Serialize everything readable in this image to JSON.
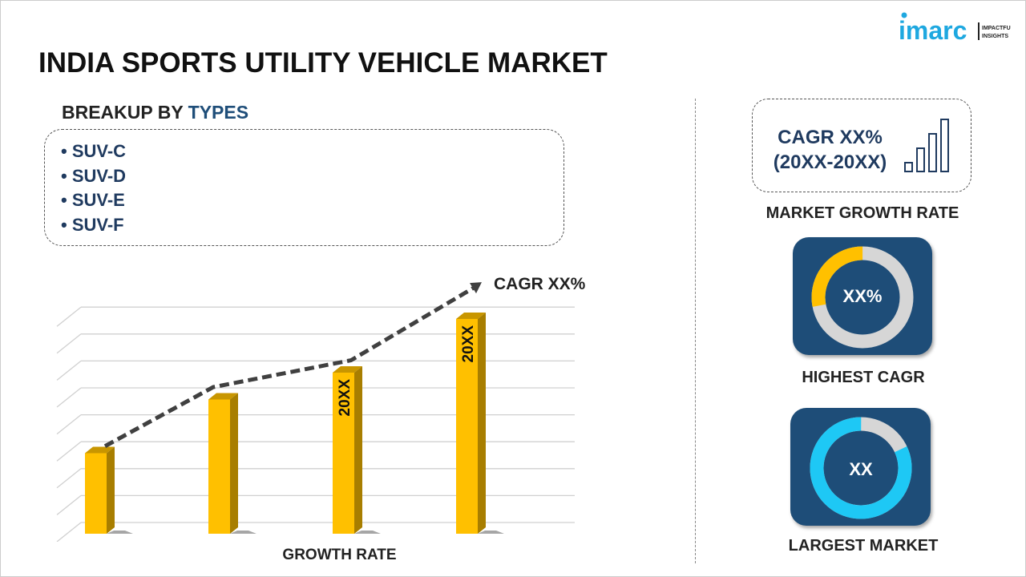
{
  "header": {
    "title": "INDIA SPORTS UTILITY VEHICLE MARKET",
    "logo_text": "imarc",
    "logo_tagline": "IMPACTFUL INSIGHTS"
  },
  "breakup": {
    "label_prefix": "BREAKUP BY",
    "label_highlight": "TYPES",
    "items": [
      "• SUV-C",
      "• SUV-D",
      "• SUV-E",
      "• SUV-F"
    ]
  },
  "chart_data": {
    "type": "bar",
    "xlabel": "GROWTH RATE",
    "ylabel": "",
    "categories": [
      "",
      "",
      "",
      ""
    ],
    "values": [
      3.0,
      5.0,
      6.0,
      8.0
    ],
    "bar_labels": [
      "",
      "",
      "20XX",
      "20XX"
    ],
    "trend": [
      3.5,
      5.7,
      6.7,
      9.4
    ],
    "trend_label": "CAGR XX%",
    "ylim": [
      0,
      8.5
    ],
    "grid": true,
    "bar_color": "#ffc000",
    "trend_color": "#404040"
  },
  "right": {
    "cagr_line1": "CAGR XX%",
    "cagr_line2": "(20XX-20XX)",
    "market_growth_label": "MARKET GROWTH RATE",
    "highest_value": "XX%",
    "highest_label": "HIGHEST CAGR",
    "highest_share": 0.28,
    "largest_value": "XX",
    "largest_label": "LARGEST MARKET",
    "largest_share": 0.82,
    "colors": {
      "navy": "#1e4d78",
      "gold": "#ffc000",
      "cyan": "#1ec8f5",
      "gray": "#d6d6d6"
    }
  }
}
